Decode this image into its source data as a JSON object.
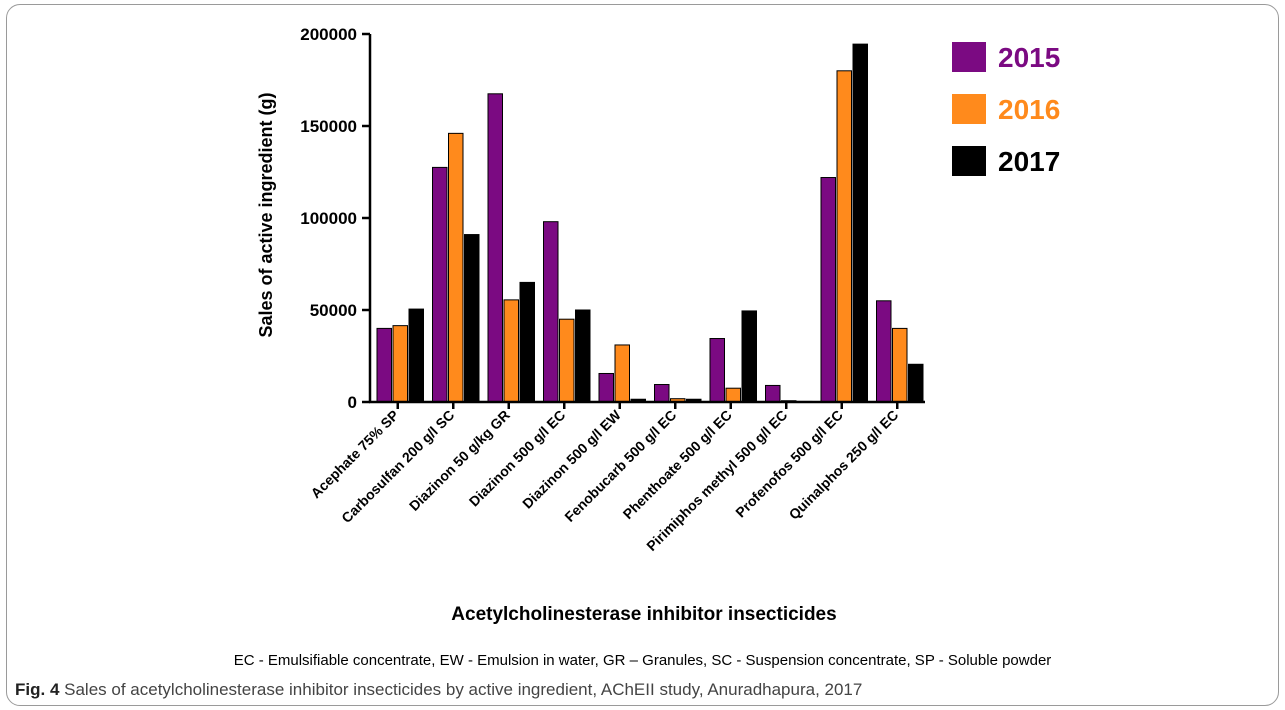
{
  "chart_data": {
    "type": "bar",
    "xlabel": "Acetylcholinesterase inhibitor insecticides",
    "ylabel": "Sales of active ingredient (g)",
    "ylim": [
      0,
      200000
    ],
    "yticks": [
      "0",
      "50000",
      "100000",
      "150000",
      "200000"
    ],
    "categories": [
      "Acephate 75% SP",
      "Carbosulfan 200 g/l SC",
      "Diazinon 50 g/kg GR",
      "Diazinon 500 g/l EC",
      "Diazinon 500 g/l EW",
      "Fenobucarb 500 g/l EC",
      "Phenthoate 500 g/l EC",
      "Pirimiphos methyl 500 g/l EC",
      "Profenofos 500 g/l EC",
      "Quinalphos 250 g/l EC"
    ],
    "series": [
      {
        "name": "2015",
        "color": "#7b0a82",
        "values": [
          40000,
          127500,
          167500,
          98000,
          15500,
          9500,
          34500,
          9000,
          122000,
          55000
        ]
      },
      {
        "name": "2016",
        "color": "#ff8a1c",
        "values": [
          41500,
          146000,
          55500,
          45000,
          31000,
          1800,
          7500,
          700,
          180000,
          40000
        ]
      },
      {
        "name": "2017",
        "color": "#000000",
        "values": [
          50500,
          91000,
          65000,
          50000,
          1500,
          1500,
          49500,
          300,
          194500,
          20500
        ]
      }
    ],
    "legend_position": "top-right",
    "grid": false
  },
  "footnote": "EC - Emulsifiable concentrate, EW - Emulsion in water, GR – Granules, SC - Suspension concentrate, SP - Soluble powder",
  "caption": {
    "label": "Fig. 4",
    "text": " Sales of acetylcholinesterase inhibitor insecticides by active ingredient, AChEII study, Anuradhapura, 2017"
  }
}
